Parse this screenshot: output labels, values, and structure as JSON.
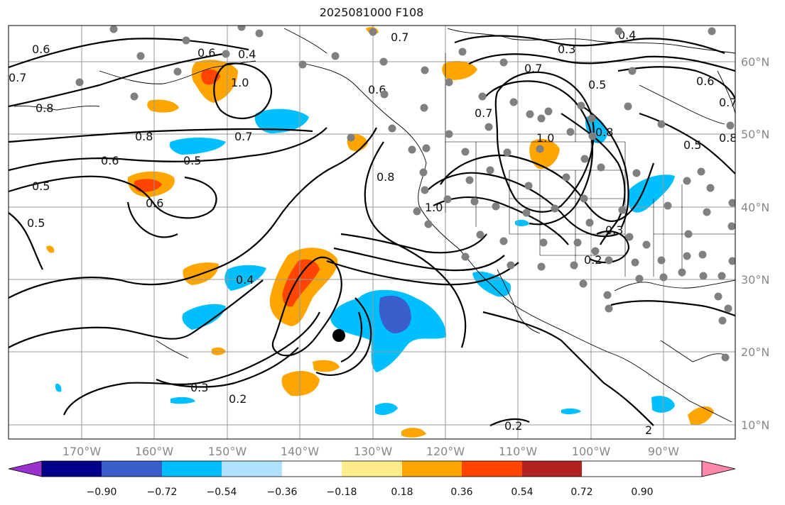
{
  "title": "2025081000 F108",
  "map": {
    "lon_ticks": [
      "170°W",
      "160°W",
      "150°W",
      "140°W",
      "130°W",
      "120°W",
      "110°W",
      "100°W",
      "90°W"
    ],
    "lat_ticks": [
      "60°N",
      "50°N",
      "40°N",
      "30°N",
      "20°N",
      "10°N"
    ],
    "contour_labels": [
      "0.6",
      "0.7",
      "0.8",
      "0.6",
      "0.5",
      "0.6",
      "0.4",
      "1.0",
      "0.8",
      "0.7",
      "0.5",
      "0.6",
      "0.4",
      "0.5",
      "0.8",
      "1.0",
      "0.3",
      "0.2",
      "0.7",
      "0.3",
      "0.7",
      "0.5",
      "0.6",
      "0.8",
      "1.0",
      "0.3",
      "0.2",
      "0.7",
      "0.5",
      "0.4",
      "0.8",
      "0.7",
      "0.6",
      "0.2",
      "2"
    ],
    "grid": true,
    "features": [
      "coastlines",
      "country-borders",
      "us-state-borders",
      "station-dots",
      "storm-center"
    ]
  },
  "colorbar": {
    "ticks": [
      "−0.90",
      "−0.72",
      "−0.54",
      "−0.36",
      "−0.18",
      "0.18",
      "0.36",
      "0.54",
      "0.72",
      "0.90"
    ],
    "colors": [
      "#9932CC",
      "#00008B",
      "#3A5FCD",
      "#00BFFF",
      "#B0E2FF",
      "#FFFFFF",
      "#FFEC8B",
      "#FFA500",
      "#FF4500",
      "#B22222",
      "#FF88AA"
    ]
  }
}
